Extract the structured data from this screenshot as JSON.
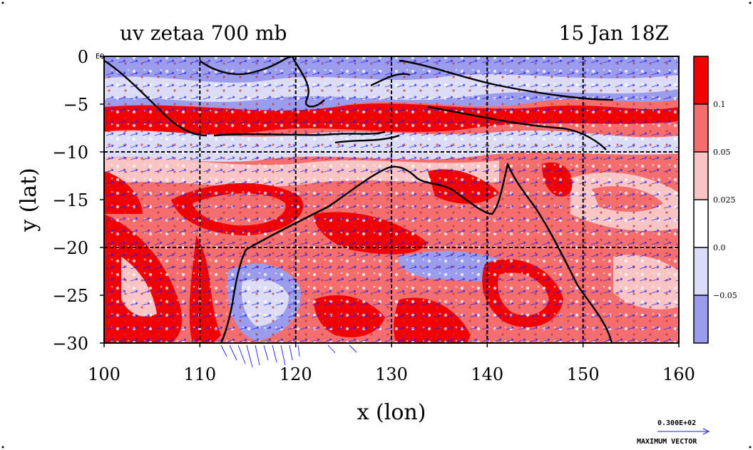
{
  "header": {
    "title_left": "uv zetaa 700 mb",
    "title_right": "15 Jan 18Z"
  },
  "axes": {
    "xlabel": "x (lon)",
    "ylabel": "y (lat)",
    "x_ticks": [
      "100",
      "110",
      "120",
      "130",
      "140",
      "150",
      "160"
    ],
    "y_ticks": [
      "0",
      "−5",
      "−10",
      "−15",
      "−20",
      "−25",
      "−30"
    ],
    "corner_label": "EQ"
  },
  "colorbar": {
    "labels": [
      "0.1",
      "0.05",
      "0.025",
      "0.0",
      "−0.05"
    ],
    "colors": [
      "#f20000",
      "#f46e6e",
      "#f8c4c4",
      "#ffffff",
      "#dcdcf6",
      "#9c9cec"
    ]
  },
  "vector_key": {
    "value": "0.300E+02",
    "caption": "MAXIMUM VECTOR"
  },
  "chart_data": {
    "type": "heatmap",
    "title": "uv zetaa 700 mb",
    "subtitle": "15 Jan 18Z",
    "xlabel": "x (lon)",
    "ylabel": "y (lat)",
    "xlim": [
      100,
      160
    ],
    "ylim": [
      -30,
      0
    ],
    "contour_levels": [
      -0.05,
      0.0,
      0.025,
      0.05,
      0.1
    ],
    "grid": true,
    "overlay": "wind vectors (u, v)"
  }
}
